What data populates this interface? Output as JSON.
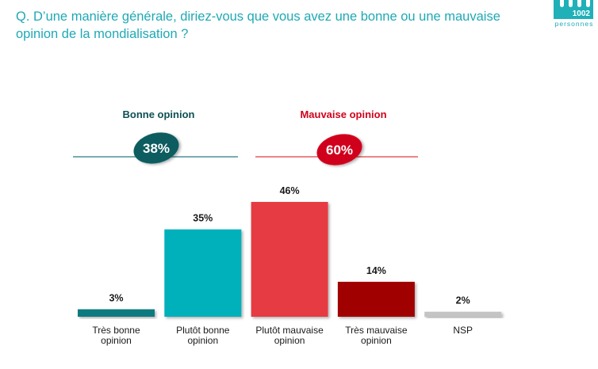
{
  "question": "Q. D’une manière générale, diriez-vous que vous avez une bonne ou une mauvaise opinion de la mondialisation ?",
  "sample_badge": {
    "count": "1002",
    "label": "personnes"
  },
  "colors": {
    "question": "#1fa9b5",
    "good_title": "#0d4f55",
    "good_bubble": "#0d5c5f",
    "good_line": "#4f8f9a",
    "bad_title": "#d0021b",
    "bad_bubble": "#d0021b",
    "bad_line": "#e35b60"
  },
  "chart_data": {
    "type": "bar",
    "title": "Q. D’une manière générale, diriez-vous que vous avez une bonne ou une mauvaise opinion de la mondialisation ?",
    "xlabel": "",
    "ylabel": "",
    "ylim": [
      0,
      50
    ],
    "grid": false,
    "categories": [
      "Très bonne opinion",
      "Plutôt bonne opinion",
      "Plutôt mauvaise opinion",
      "Très mauvaise opinion",
      "NSP"
    ],
    "category_lines": [
      [
        "Très bonne",
        "opinion"
      ],
      [
        "Plutôt bonne",
        "opinion"
      ],
      [
        "Plutôt mauvaise",
        "opinion"
      ],
      [
        "Très mauvaise",
        "opinion"
      ],
      [
        "NSP"
      ]
    ],
    "values": [
      3,
      35,
      46,
      14,
      2
    ],
    "value_labels": [
      "3%",
      "35%",
      "46%",
      "14%",
      "2%"
    ],
    "bar_colors": [
      "#0c7a80",
      "#00b0bb",
      "#e63b43",
      "#a00000",
      "#c4c4c4"
    ],
    "groups": [
      {
        "name": "Bonne opinion",
        "total": 38,
        "total_label": "38%",
        "members": [
          0,
          1
        ]
      },
      {
        "name": "Mauvaise opinion",
        "total": 60,
        "total_label": "60%",
        "members": [
          2,
          3
        ]
      }
    ]
  }
}
